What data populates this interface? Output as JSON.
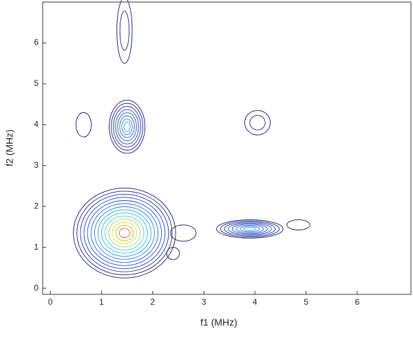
{
  "chart_data": {
    "type": "contour",
    "xlabel": "f1 (MHz)",
    "ylabel": "f2 (MHz)",
    "xlim": [
      -0.15,
      7.05
    ],
    "ylim": [
      -0.15,
      7.0
    ],
    "xticks": [
      0,
      1,
      2,
      3,
      4,
      5,
      6
    ],
    "yticks": [
      0,
      1,
      2,
      3,
      4,
      5,
      6
    ],
    "peaks": {
      "x": [
        1.45,
        1.5,
        1.45,
        3.9,
        4.05,
        0.65,
        2.6,
        2.4,
        4.85
      ],
      "y": [
        1.35,
        3.95,
        6.3,
        1.45,
        4.05,
        4.0,
        1.35,
        0.85,
        1.55
      ],
      "width": [
        2.0,
        0.7,
        0.3,
        1.3,
        0.5,
        0.3,
        0.5,
        0.25,
        0.45
      ],
      "height": [
        2.2,
        1.3,
        1.6,
        0.45,
        0.6,
        0.6,
        0.4,
        0.3,
        0.25
      ],
      "intensity": [
        14,
        8,
        2,
        8,
        2,
        1,
        1,
        1,
        1
      ]
    }
  }
}
